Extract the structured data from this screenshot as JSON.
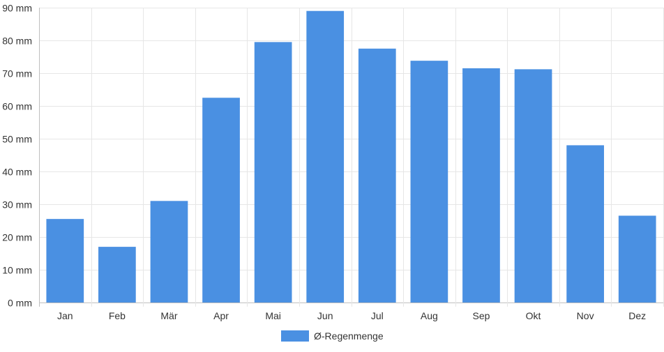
{
  "chart_data": {
    "type": "bar",
    "categories": [
      "Jan",
      "Feb",
      "Mär",
      "Apr",
      "Mai",
      "Jun",
      "Jul",
      "Aug",
      "Sep",
      "Okt",
      "Nov",
      "Dez"
    ],
    "series": [
      {
        "name": "Ø-Regenmenge",
        "values": [
          25.5,
          17,
          31,
          62.5,
          79.5,
          89,
          77.5,
          73.8,
          71.5,
          71.2,
          48,
          26.5
        ],
        "color": "#4a90e2"
      }
    ],
    "y_axis": {
      "min": 0,
      "max": 90,
      "step": 10,
      "tick_labels": [
        "0 mm",
        "10 mm",
        "20 mm",
        "30 mm",
        "40 mm",
        "50 mm",
        "60 mm",
        "70 mm",
        "80 mm",
        "90 mm"
      ]
    },
    "grid": true,
    "legend": {
      "position": "bottom-center",
      "label": "Ø-Regenmenge"
    },
    "colors": {
      "bar": "#4a90e2",
      "grid": "#e6e6e6",
      "axis": "#bfbfbf",
      "text": "#333333"
    }
  }
}
